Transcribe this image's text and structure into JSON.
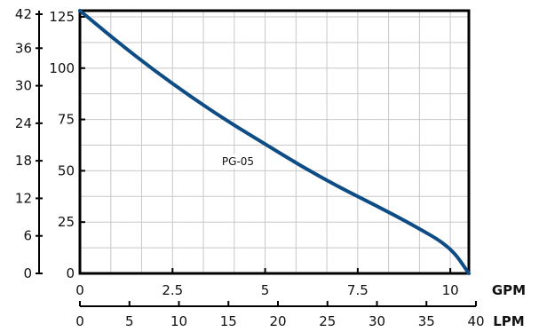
{
  "chart_data": {
    "type": "line",
    "title": "",
    "x_primary": {
      "unit": "GPM",
      "range": [
        0,
        10.5
      ],
      "ticks": [
        0,
        2.5,
        5,
        7.5,
        10
      ],
      "tick_labels": [
        "0",
        "2.5",
        "5",
        "7.5",
        "10"
      ]
    },
    "x_secondary": {
      "unit": "LPM",
      "range": [
        0,
        40
      ],
      "ticks": [
        0,
        5,
        10,
        15,
        20,
        25,
        30,
        35,
        40
      ],
      "tick_labels": [
        "0",
        "5",
        "10",
        "15",
        "20",
        "25",
        "30",
        "35",
        "40"
      ]
    },
    "y_inner": {
      "range": [
        0,
        128
      ],
      "ticks": [
        0,
        25,
        50,
        75,
        100,
        125
      ],
      "tick_labels": [
        "0",
        "25",
        "50",
        "75",
        "100",
        "125"
      ]
    },
    "y_outer": {
      "range": [
        0,
        42
      ],
      "ticks": [
        0,
        6,
        12,
        18,
        24,
        30,
        36,
        42
      ],
      "tick_labels": [
        "0",
        "6",
        "12",
        "18",
        "24",
        "30",
        "36",
        "42"
      ]
    },
    "grid": true,
    "series": [
      {
        "name": "PG-05",
        "color": "#0d4c85",
        "x": [
          0,
          1,
          2,
          3,
          4,
          5,
          6,
          7,
          8,
          9,
          10,
          10.5
        ],
        "y": [
          128,
          113,
          99,
          86,
          74,
          63,
          52,
          42,
          33,
          23.5,
          13,
          0
        ]
      }
    ]
  }
}
